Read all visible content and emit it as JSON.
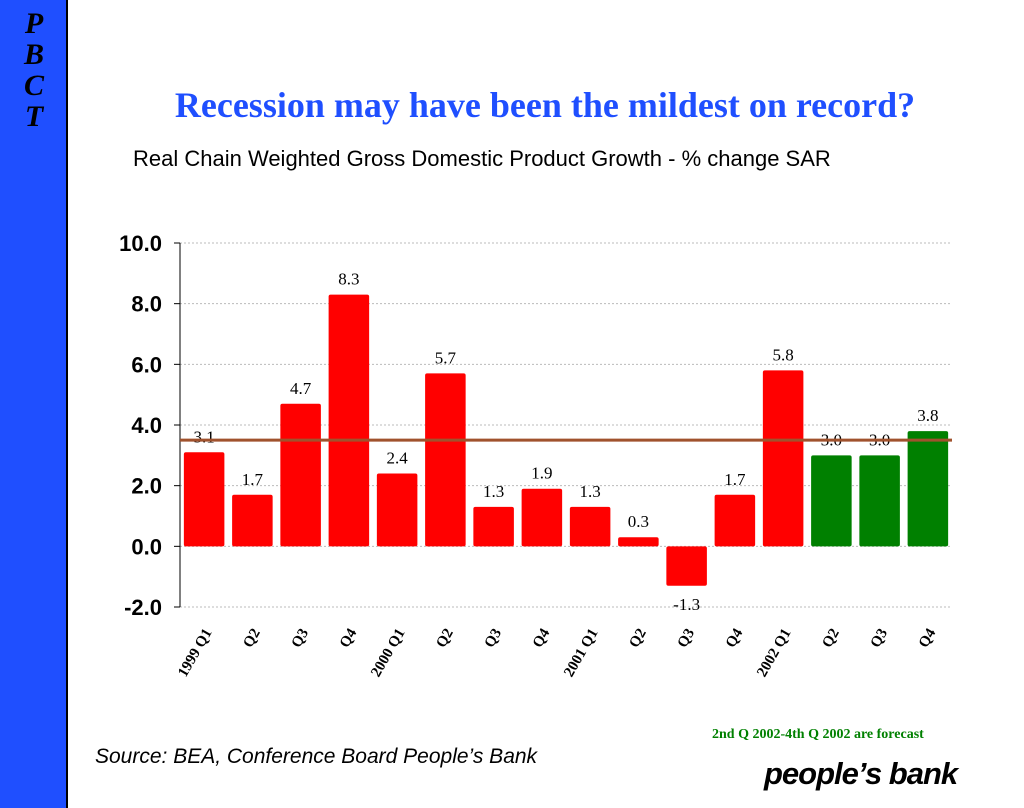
{
  "side_letters": [
    "P",
    "B",
    "C",
    "T"
  ],
  "title": "Recession may have been the mildest on record?",
  "subtitle": "Real Chain Weighted Gross Domestic Product Growth - % change SAR",
  "forecast_note": "2nd Q 2002-4th Q 2002 are forecast",
  "source": "Source: BEA, Conference Board People’s Bank",
  "logo_text": "people’s bank",
  "colors": {
    "actual": "#ff0000",
    "forecast": "#008000",
    "average_line": "#a0522d",
    "accent": "#1f4fff"
  },
  "chart_data": {
    "type": "bar",
    "categories": [
      "1999 Q1",
      "Q2",
      "Q3",
      "Q4",
      "2000 Q1",
      "Q2",
      "Q3",
      "Q4",
      "2001 Q1",
      "Q2",
      "Q3",
      "Q4",
      "2002 Q1",
      "Q2",
      "Q3",
      "Q4"
    ],
    "values": [
      3.1,
      1.7,
      4.7,
      8.3,
      2.4,
      5.7,
      1.3,
      1.9,
      1.3,
      0.3,
      -1.3,
      1.7,
      5.8,
      3.0,
      3.0,
      3.8
    ],
    "data_labels": [
      "3.1",
      "1.7",
      "4.7",
      "8.3",
      "2.4",
      "5.7",
      "1.3",
      "1.9",
      "1.3",
      "0.3",
      "-1.3",
      "1.7",
      "5.8",
      "3.0",
      "3.0",
      "3.8"
    ],
    "forecast": [
      false,
      false,
      false,
      false,
      false,
      false,
      false,
      false,
      false,
      false,
      false,
      false,
      false,
      true,
      true,
      true
    ],
    "reference_line": 3.5,
    "ylim": [
      -2.0,
      10.0
    ],
    "yticks": [
      10.0,
      8.0,
      6.0,
      4.0,
      2.0,
      0.0,
      -2.0
    ],
    "ytick_labels": [
      "10.0",
      "8.0",
      "6.0",
      "4.0",
      "2.0",
      "0.0",
      "-2.0"
    ],
    "grid": true,
    "title": "",
    "xlabel": "",
    "ylabel": ""
  }
}
